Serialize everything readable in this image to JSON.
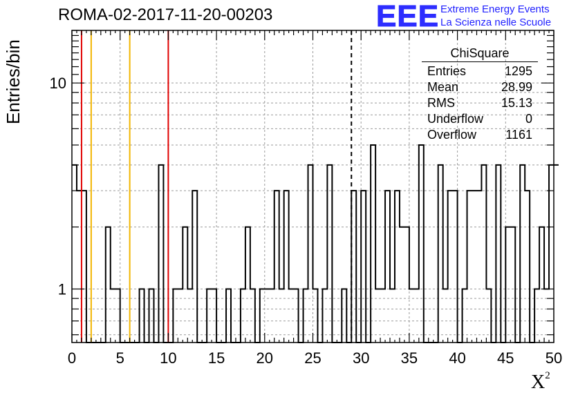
{
  "title": "ROMA-02-2017-11-20-00203",
  "logo": {
    "mark": "EEE",
    "line1": "Extreme Energy Events",
    "line2": "La Scienza nelle Scuole",
    "color": "#2d2dff"
  },
  "stats_box": {
    "header": "ChiSquare",
    "rows": [
      {
        "label": "Entries",
        "value": "1295"
      },
      {
        "label": "Mean",
        "value": "28.99"
      },
      {
        "label": "RMS",
        "value": "15.13"
      },
      {
        "label": "Underflow",
        "value": "0"
      },
      {
        "label": "Overflow",
        "value": "1161"
      }
    ]
  },
  "chart_data": {
    "type": "histogram",
    "title": "ROMA-02-2017-11-20-00203",
    "xlabel": "X",
    "xlabel_superscript": "2",
    "ylabel": "Entries/bin",
    "xlim": [
      0,
      50
    ],
    "ylim": [
      0.55,
      18
    ],
    "yscale": "log",
    "grid": true,
    "x_ticks": [
      "0",
      "5",
      "10",
      "15",
      "20",
      "25",
      "30",
      "35",
      "40",
      "45",
      "50"
    ],
    "y_ticks": [
      "1",
      "10"
    ],
    "bin_width": 0.5,
    "values": [
      4,
      3,
      3,
      0,
      0,
      0,
      0,
      2,
      1,
      1,
      0,
      0,
      0,
      0,
      1,
      0,
      1,
      0,
      4,
      0,
      0,
      1,
      1,
      2,
      1,
      3,
      0,
      0,
      1,
      1,
      0,
      0,
      1,
      0,
      0,
      1,
      2,
      1,
      0,
      1,
      1,
      1,
      3,
      1,
      3,
      1,
      1,
      0,
      1,
      4,
      1,
      0,
      1,
      4,
      0,
      0,
      1,
      0,
      3,
      0,
      3,
      0,
      5,
      1,
      1,
      3,
      1,
      3,
      2,
      2,
      1,
      1,
      5,
      0,
      0,
      0,
      4,
      1,
      3,
      3,
      0,
      1,
      3,
      3,
      3,
      4,
      1,
      0,
      4,
      0,
      2,
      2,
      0,
      4,
      3,
      0,
      1,
      2,
      1,
      4,
      4
    ],
    "vertical_lines": [
      {
        "x": 1,
        "color": "#e00000",
        "style": "solid"
      },
      {
        "x": 2,
        "color": "#f2b600",
        "style": "solid"
      },
      {
        "x": 6,
        "color": "#f2b600",
        "style": "solid"
      },
      {
        "x": 10,
        "color": "#e00000",
        "style": "solid"
      },
      {
        "x": 29,
        "color": "#000000",
        "style": "dashed"
      }
    ]
  }
}
